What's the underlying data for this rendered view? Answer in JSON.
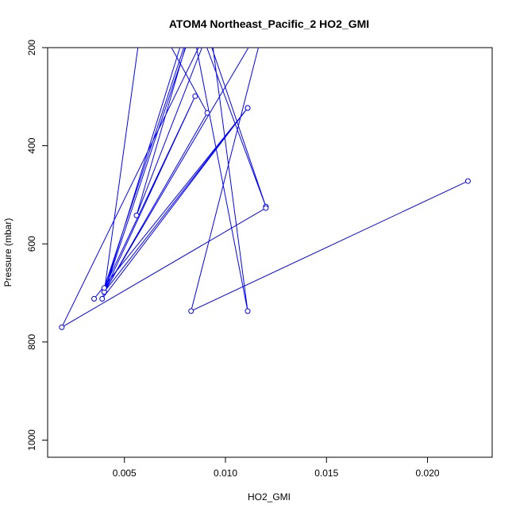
{
  "chart_data": {
    "type": "line",
    "title": "ATOM4 Northeast_Pacific_2 HO2_GMI",
    "xlabel": "HO2_GMI",
    "ylabel": "Pressure (mbar)",
    "xlim": [
      0.0012,
      0.0232
    ],
    "ylim": [
      1035,
      200
    ],
    "y_reversed": true,
    "x_ticks": [
      0.005,
      0.01,
      0.015,
      0.02
    ],
    "x_tick_labels": [
      "0.005",
      "0.010",
      "0.015",
      "0.020"
    ],
    "y_ticks": [
      200,
      400,
      600,
      800,
      1000
    ],
    "y_tick_labels": [
      "200",
      "400",
      "600",
      "800",
      "1000"
    ],
    "series": [
      {
        "color": "#0000ff",
        "points": [
          {
            "x": 0.022,
            "y": 472
          },
          {
            "x": 0.0083,
            "y": 737
          },
          {
            "x": 0.012,
            "y": 140
          },
          {
            "x": 0.004,
            "y": 698
          },
          {
            "x": 0.0085,
            "y": 100
          },
          {
            "x": 0.012,
            "y": 524
          },
          {
            "x": 0.008,
            "y": 80
          },
          {
            "x": 0.0111,
            "y": 737
          },
          {
            "x": 0.009,
            "y": 80
          },
          {
            "x": 0.0039,
            "y": 712
          },
          {
            "x": 0.0111,
            "y": 323
          },
          {
            "x": 0.0035,
            "y": 712
          },
          {
            "x": 0.0111,
            "y": 323
          },
          {
            "x": 0.004,
            "y": 698
          },
          {
            "x": 0.0091,
            "y": 333
          },
          {
            "x": 0.006,
            "y": 100
          },
          {
            "x": 0.004,
            "y": 698
          },
          {
            "x": 0.0085,
            "y": 299
          },
          {
            "x": 0.004,
            "y": 690
          },
          {
            "x": 0.0085,
            "y": 130
          },
          {
            "x": 0.0056,
            "y": 542
          },
          {
            "x": 0.0095,
            "y": 130
          },
          {
            "x": 0.0019,
            "y": 770
          },
          {
            "x": 0.012,
            "y": 527
          }
        ]
      }
    ]
  }
}
